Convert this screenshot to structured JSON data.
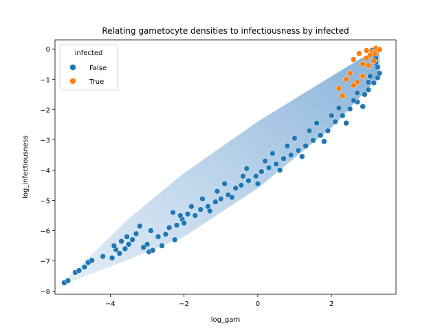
{
  "chart_data": {
    "type": "scatter",
    "title": "Relating gametocyte densities to infectiousness by infected",
    "xlabel": "log_gam",
    "ylabel": "log_infectiousness",
    "xlim": [
      -5.5,
      3.75
    ],
    "ylim": [
      -8.1,
      0.3
    ],
    "x_ticks": [
      -4,
      -2,
      0,
      2
    ],
    "y_ticks": [
      0,
      -1,
      -2,
      -3,
      -4,
      -5,
      -6,
      -7,
      -8
    ],
    "grid": false,
    "legend": {
      "title": "infected",
      "placement": "top-left",
      "entries": [
        {
          "label": "False",
          "color": "#1f77b4"
        },
        {
          "label": "True",
          "color": "#ff7f0e"
        }
      ]
    },
    "series": [
      {
        "name": "False",
        "color": "#1f77b4",
        "points": [
          [
            -5.25,
            -7.72
          ],
          [
            -5.15,
            -7.65
          ],
          [
            -4.95,
            -7.38
          ],
          [
            -4.85,
            -7.32
          ],
          [
            -4.7,
            -7.2
          ],
          [
            -4.6,
            -7.05
          ],
          [
            -4.5,
            -6.98
          ],
          [
            -3.95,
            -6.9
          ],
          [
            -3.85,
            -6.62
          ],
          [
            -3.75,
            -6.75
          ],
          [
            -3.7,
            -6.35
          ],
          [
            -3.55,
            -6.2
          ],
          [
            -3.4,
            -6.3
          ],
          [
            -3.3,
            -6.1
          ],
          [
            -3.0,
            -6.45
          ],
          [
            -3.1,
            -6.55
          ],
          [
            -2.95,
            -6.7
          ],
          [
            -2.85,
            -6.65
          ],
          [
            -2.6,
            -6.5
          ],
          [
            -2.5,
            -6.12
          ],
          [
            -2.25,
            -6.3
          ],
          [
            -2.4,
            -5.9
          ],
          [
            -2.2,
            -5.82
          ],
          [
            -2.05,
            -5.62
          ],
          [
            -1.9,
            -5.45
          ],
          [
            -1.7,
            -5.5
          ],
          [
            -1.55,
            -5.3
          ],
          [
            -1.35,
            -5.2
          ],
          [
            -1.15,
            -5.05
          ],
          [
            -1.0,
            -4.95
          ],
          [
            -0.8,
            -4.82
          ],
          [
            -0.6,
            -4.6
          ],
          [
            -0.45,
            -4.5
          ],
          [
            -0.25,
            -4.35
          ],
          [
            -0.05,
            -4.2
          ],
          [
            0.1,
            -4.05
          ],
          [
            0.3,
            -3.92
          ],
          [
            0.5,
            -3.8
          ],
          [
            0.7,
            -3.62
          ],
          [
            0.9,
            -3.5
          ],
          [
            1.1,
            -3.35
          ],
          [
            1.3,
            -3.2
          ],
          [
            1.5,
            -3.02
          ],
          [
            1.7,
            -2.85
          ],
          [
            1.9,
            -2.7
          ],
          [
            2.1,
            -2.4
          ],
          [
            2.3,
            -2.2
          ],
          [
            2.5,
            -1.98
          ],
          [
            2.7,
            -1.75
          ],
          [
            2.9,
            -1.5
          ],
          [
            3.0,
            -1.35
          ],
          [
            3.15,
            -1.12
          ],
          [
            3.25,
            -0.95
          ],
          [
            3.3,
            -0.8
          ],
          [
            3.25,
            -0.6
          ],
          [
            3.2,
            -0.3
          ],
          [
            3.1,
            -0.05
          ],
          [
            -4.2,
            -6.85
          ],
          [
            -3.5,
            -6.45
          ],
          [
            -2.7,
            -6.2
          ],
          [
            -2.0,
            -5.75
          ],
          [
            -1.3,
            -5.35
          ],
          [
            -0.7,
            -4.9
          ],
          [
            0.0,
            -4.45
          ],
          [
            0.6,
            -4.0
          ],
          [
            1.2,
            -3.55
          ],
          [
            1.8,
            -3.05
          ],
          [
            2.4,
            -2.45
          ],
          [
            2.85,
            -1.9
          ],
          [
            -3.2,
            -5.85
          ],
          [
            -2.3,
            -5.4
          ],
          [
            -1.5,
            -4.95
          ],
          [
            -0.9,
            -4.45
          ],
          [
            -0.3,
            -3.95
          ],
          [
            0.4,
            -3.45
          ],
          [
            1.0,
            -2.95
          ],
          [
            1.6,
            -2.45
          ],
          [
            2.2,
            -1.95
          ],
          [
            2.7,
            -1.45
          ],
          [
            3.05,
            -0.9
          ],
          [
            -3.9,
            -6.5
          ],
          [
            -3.6,
            -6.6
          ],
          [
            -2.9,
            -6.0
          ],
          [
            -2.1,
            -5.5
          ],
          [
            -1.8,
            -5.2
          ],
          [
            -1.1,
            -4.7
          ],
          [
            -0.4,
            -4.2
          ],
          [
            0.2,
            -3.7
          ],
          [
            0.8,
            -3.2
          ],
          [
            1.4,
            -2.7
          ],
          [
            2.0,
            -2.2
          ],
          [
            2.6,
            -1.7
          ],
          [
            3.0,
            -1.1
          ],
          [
            3.2,
            -0.45
          ]
        ]
      },
      {
        "name": "True",
        "color": "#ff7f0e",
        "points": [
          [
            3.25,
            -0.05
          ],
          [
            3.2,
            0.02
          ],
          [
            3.1,
            -0.1
          ],
          [
            3.05,
            -0.2
          ],
          [
            2.95,
            -0.3
          ],
          [
            3.15,
            -0.4
          ],
          [
            2.85,
            -0.5
          ],
          [
            2.75,
            -0.15
          ],
          [
            2.6,
            -0.35
          ],
          [
            3.3,
            -0.02
          ],
          [
            3.0,
            -0.55
          ],
          [
            2.5,
            -0.8
          ],
          [
            2.4,
            -1.0
          ],
          [
            2.7,
            -1.1
          ],
          [
            2.2,
            -1.3
          ],
          [
            2.3,
            -1.55
          ],
          [
            2.6,
            -1.2
          ],
          [
            2.85,
            -0.9
          ],
          [
            3.18,
            -0.15
          ],
          [
            2.95,
            -0.05
          ]
        ]
      }
    ]
  }
}
